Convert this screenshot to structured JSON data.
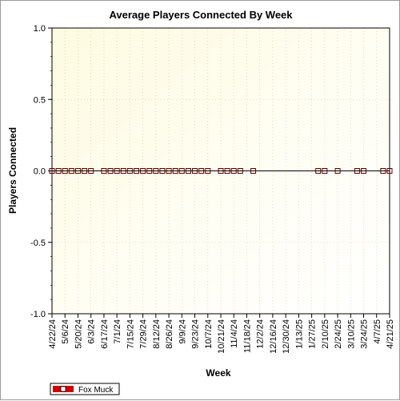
{
  "chart_data": {
    "type": "line",
    "title": "Average Players Connected By Week",
    "xlabel": "Week",
    "ylabel": "Players Connected",
    "ylim": [
      -1.0,
      1.0
    ],
    "yticks": [
      "1.0",
      "0.5",
      "0.0",
      "-0.5",
      "-1.0"
    ],
    "x_tick_labels": [
      "4/22/24",
      "5/6/24",
      "5/20/24",
      "6/3/24",
      "6/17/24",
      "7/1/24",
      "7/15/24",
      "7/29/24",
      "8/12/24",
      "8/26/24",
      "9/9/24",
      "9/23/24",
      "10/7/24",
      "10/21/24",
      "11/4/24",
      "11/18/24",
      "12/2/24",
      "12/16/24",
      "12/30/24",
      "1/13/25",
      "1/27/25",
      "2/10/25",
      "2/24/25",
      "3/10/25",
      "3/24/25",
      "4/7/25",
      "4/21/25"
    ],
    "grid": true,
    "legend_position": "bottom-left",
    "series": [
      {
        "name": "Fox Muck",
        "color": "#cc0000",
        "points": [
          {
            "x": "4/22/24",
            "y": 0
          },
          {
            "x": "4/29/24",
            "y": 0
          },
          {
            "x": "5/6/24",
            "y": 0
          },
          {
            "x": "5/13/24",
            "y": 0
          },
          {
            "x": "5/20/24",
            "y": 0
          },
          {
            "x": "5/27/24",
            "y": 0
          },
          {
            "x": "6/3/24",
            "y": 0
          },
          {
            "x": "6/17/24",
            "y": 0
          },
          {
            "x": "6/24/24",
            "y": 0
          },
          {
            "x": "7/1/24",
            "y": 0
          },
          {
            "x": "7/8/24",
            "y": 0
          },
          {
            "x": "7/15/24",
            "y": 0
          },
          {
            "x": "7/22/24",
            "y": 0
          },
          {
            "x": "7/29/24",
            "y": 0
          },
          {
            "x": "8/5/24",
            "y": 0
          },
          {
            "x": "8/12/24",
            "y": 0
          },
          {
            "x": "8/19/24",
            "y": 0
          },
          {
            "x": "8/26/24",
            "y": 0
          },
          {
            "x": "9/2/24",
            "y": 0
          },
          {
            "x": "9/9/24",
            "y": 0
          },
          {
            "x": "9/16/24",
            "y": 0
          },
          {
            "x": "9/23/24",
            "y": 0
          },
          {
            "x": "9/30/24",
            "y": 0
          },
          {
            "x": "10/7/24",
            "y": 0
          },
          {
            "x": "10/21/24",
            "y": 0
          },
          {
            "x": "10/28/24",
            "y": 0
          },
          {
            "x": "11/4/24",
            "y": 0
          },
          {
            "x": "11/11/24",
            "y": 0
          },
          {
            "x": "11/25/24",
            "y": 0
          },
          {
            "x": "2/3/25",
            "y": 0
          },
          {
            "x": "2/10/25",
            "y": 0
          },
          {
            "x": "2/24/25",
            "y": 0
          },
          {
            "x": "3/17/25",
            "y": 0
          },
          {
            "x": "3/24/25",
            "y": 0
          },
          {
            "x": "4/14/25",
            "y": 0
          },
          {
            "x": "4/21/25",
            "y": 0
          }
        ]
      }
    ]
  }
}
